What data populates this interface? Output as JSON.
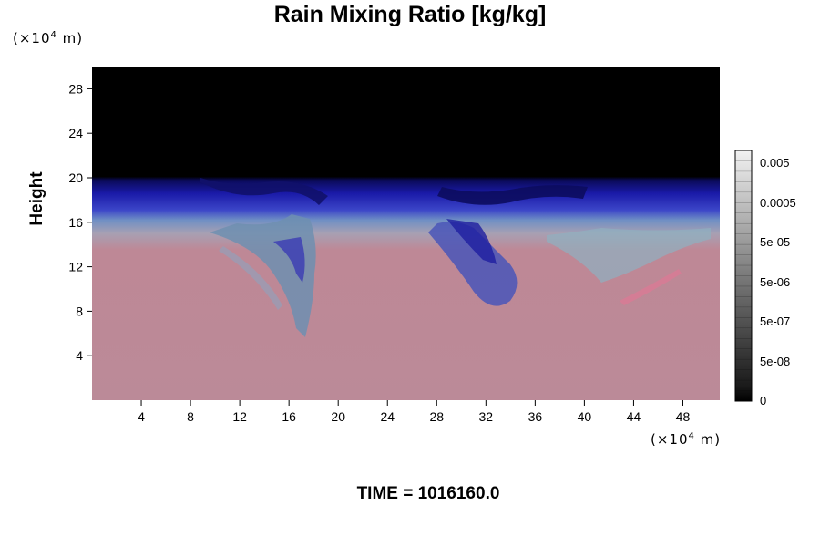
{
  "chart_data": {
    "type": "heatmap",
    "title": "Rain Mixing Ratio [kg/kg]",
    "ylabel": "Height",
    "y_unit": {
      "prefix": "(×10",
      "exp": "4",
      "suffix": " m)"
    },
    "x_unit": {
      "prefix": "(×10",
      "exp": "4",
      "suffix": " m)"
    },
    "xlim": [
      0,
      51
    ],
    "ylim": [
      0,
      30
    ],
    "x_ticks": [
      4,
      8,
      12,
      16,
      20,
      24,
      28,
      32,
      36,
      40,
      44,
      48
    ],
    "y_ticks": [
      4,
      8,
      12,
      16,
      20,
      24,
      28
    ],
    "colorbar": {
      "labels": [
        "0.005",
        "0.0005",
        "5e-05",
        "5e-06",
        "5e-07",
        "5e-08",
        "0"
      ]
    },
    "footer": "TIME = 1016160.0"
  }
}
